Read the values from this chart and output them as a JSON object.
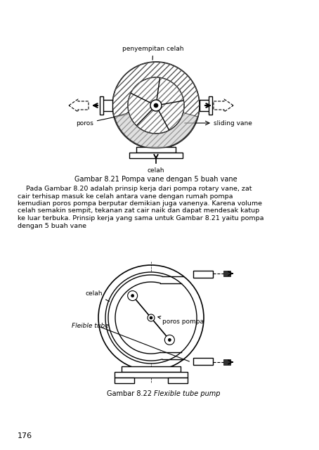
{
  "bg_color": "#ffffff",
  "line_color": "#000000",
  "caption1": "Gambar 8.21 Pompa vane dengan 5 buah vane",
  "caption2_normal": "Gambar 8.22 ",
  "caption2_italic": "Flexible tube pump",
  "page_number": "176",
  "label_penyempitan": "penyempitan celah",
  "label_poros": "poros",
  "label_celah": "celah",
  "label_sliding": "sliding vane",
  "label_celah2": "celah",
  "label_poros_pompa": "poros pompa",
  "label_flexible": "Fleible tube",
  "para_lines": [
    "    Pada Gambar 8.20 adalah prinsip kerja dari pompa rotary vane, zat",
    "cair terhisap masuk ke celah antara vane dengan rumah pompa",
    "kemudian poros pompa berputar demikian juga vanenya. Karena volume",
    "celah semakin sempit, tekanan zat cair naik dan dapat mendesak katup",
    "ke luar terbuka. Prinsip kerja yang sama untuk Gambar 8.21 yaitu pompa",
    "dengan 5 buah vane"
  ]
}
